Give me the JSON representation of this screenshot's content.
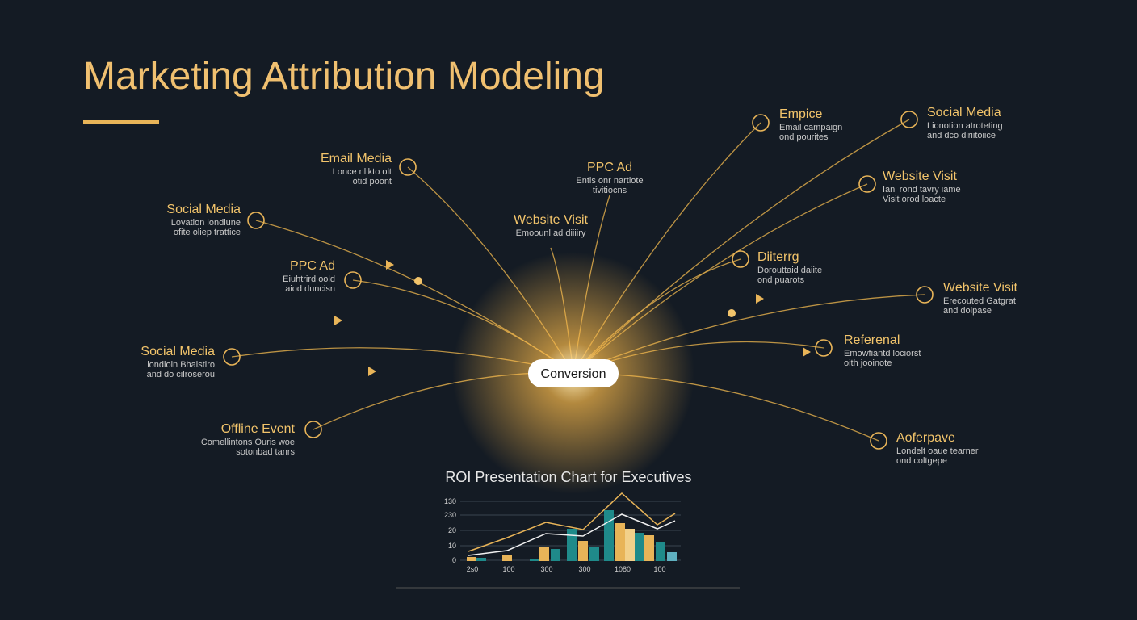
{
  "header": {
    "title": "Marketing Attribution Modeling"
  },
  "center": {
    "label": "Conversion"
  },
  "nodes": [
    {
      "label": "Email Media",
      "desc": [
        "Lonce nlikto olt",
        "otid poont"
      ]
    },
    {
      "label": "Social Media",
      "desc": [
        "Lovation londiune",
        "ofite oliep trattice"
      ]
    },
    {
      "label": "PPC Ad",
      "desc": [
        "Eiuhtrird oold",
        "aiod duncisn"
      ]
    },
    {
      "label": "Social Media",
      "desc": [
        "londloin Bhaistiro",
        "and do cilroserou"
      ]
    },
    {
      "label": "Offline Event",
      "desc": [
        "Comellintons Ouris woe",
        "sotonbad tanrs"
      ]
    },
    {
      "label": "PPC Ad",
      "desc": [
        "Entis onr nartiote",
        "tivitiocns"
      ]
    },
    {
      "label": "Website Visit",
      "desc": [
        "Emoounl ad diiiiry"
      ]
    },
    {
      "label": "Empice",
      "desc": [
        "Email campaign",
        "ond pourites"
      ]
    },
    {
      "label": "Social Media",
      "desc": [
        "Lionotion atroteting",
        "and dco diriitoiice"
      ]
    },
    {
      "label": "Website Visit",
      "desc": [
        "Ianl rond tavry iame",
        "Visit orod loacte"
      ]
    },
    {
      "label": "Diiterrg",
      "desc": [
        "Dorouttaid daiite",
        "ond puarots"
      ]
    },
    {
      "label": "Website Visit",
      "desc": [
        "Erecouted Gatgrat",
        "and dolpase"
      ]
    },
    {
      "label": "Referenal",
      "desc": [
        "Emowfiantd lociorst",
        "oith jooinote"
      ]
    },
    {
      "label": "Aoferpave",
      "desc": [
        "Londelt oaue tearner",
        "ond coltgepe"
      ]
    }
  ],
  "roi_chart": {
    "title": "ROI Presentation Chart for Executives",
    "y_labels": [
      "130",
      "230",
      "20",
      "10",
      "0"
    ],
    "x_labels": [
      "2s0",
      "100",
      "300",
      "300",
      "1080",
      "100"
    ]
  }
}
